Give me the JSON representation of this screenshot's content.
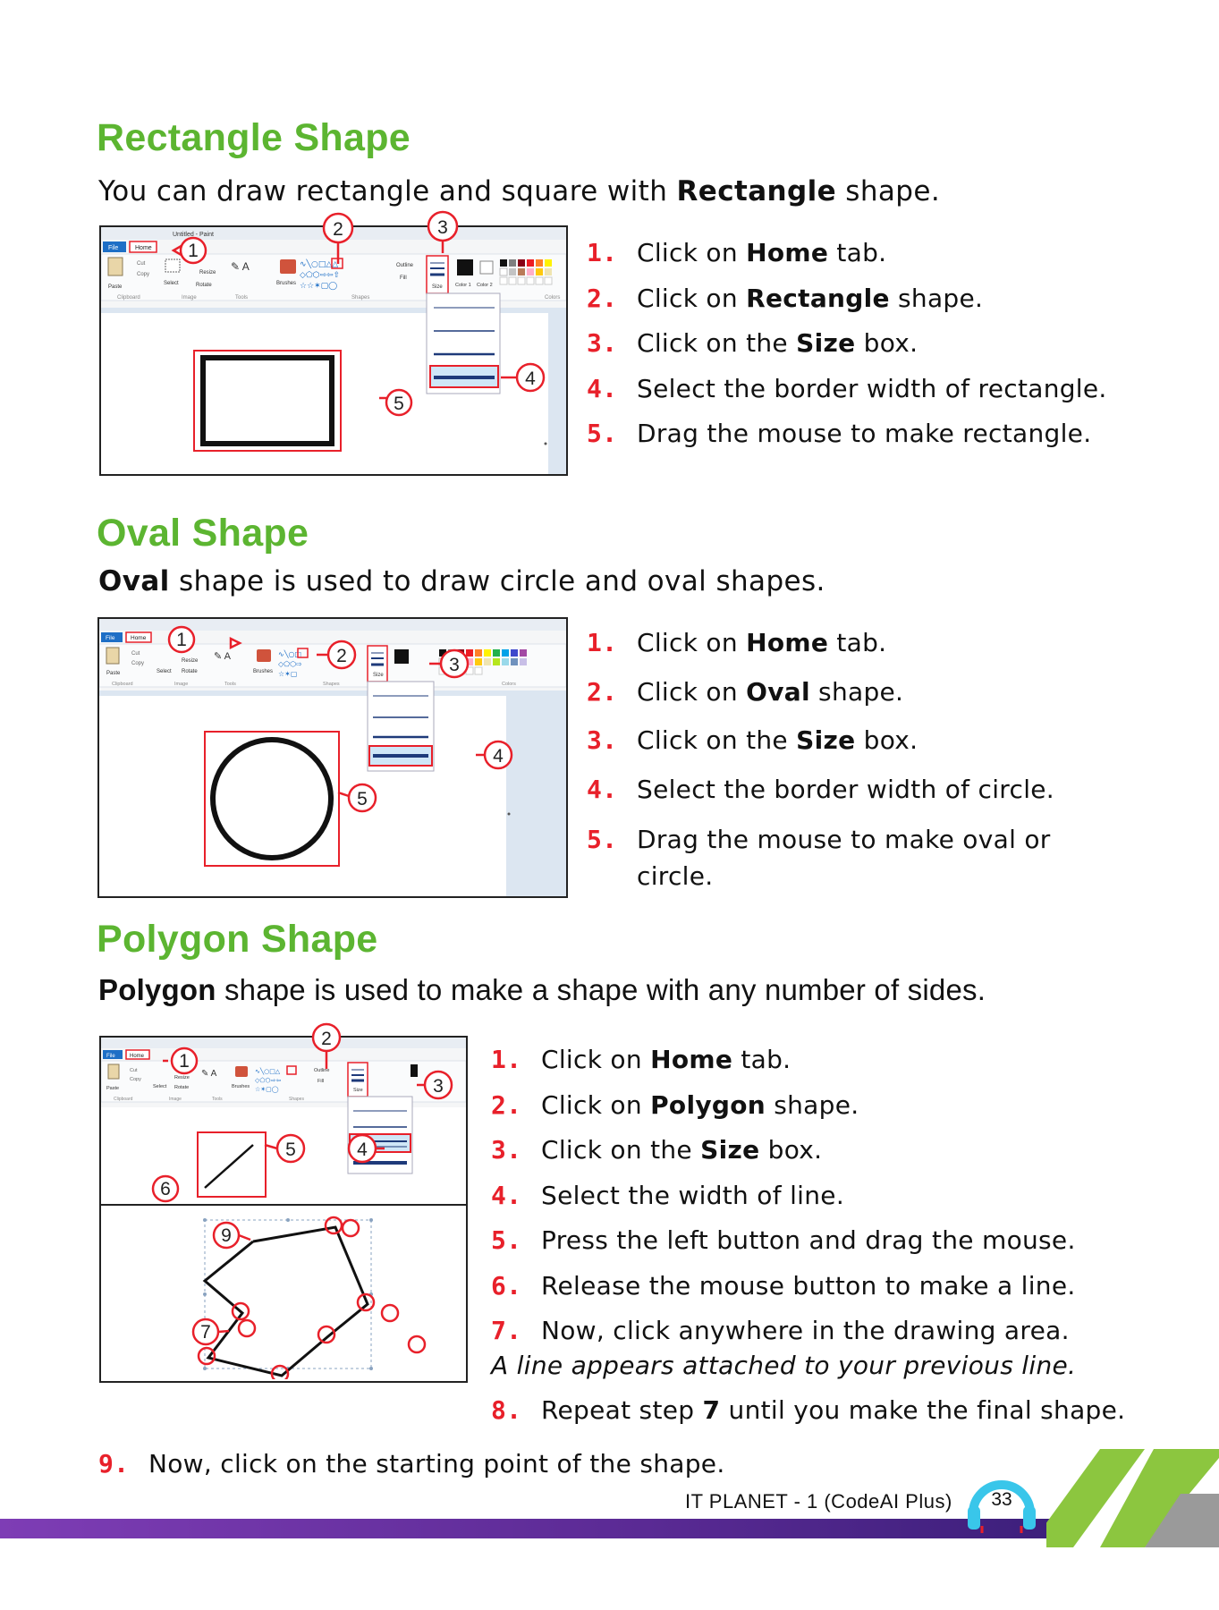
{
  "sections": [
    {
      "title": "Rectangle Shape",
      "intro_before": "You can draw rectangle and square with ",
      "intro_bold": "Rectangle",
      "intro_after": " shape.",
      "steps": [
        {
          "num": "1.",
          "pre": "Click on ",
          "bold": "Home",
          "post": " tab."
        },
        {
          "num": "2.",
          "pre": "Click on ",
          "bold": "Rectangle",
          "post": " shape."
        },
        {
          "num": "3.",
          "pre": "Click on the ",
          "bold": "Size",
          "post": " box."
        },
        {
          "num": "4.",
          "pre": "Select the border width of rectangle.",
          "bold": "",
          "post": ""
        },
        {
          "num": "5.",
          "pre": "Drag the mouse to make rectangle.",
          "bold": "",
          "post": ""
        }
      ]
    },
    {
      "title": "Oval Shape",
      "intro_before": "",
      "intro_bold": "Oval",
      "intro_after": " shape is used to draw circle and oval shapes.",
      "steps": [
        {
          "num": "1.",
          "pre": "Click on ",
          "bold": "Home",
          "post": " tab."
        },
        {
          "num": "2.",
          "pre": "Click on ",
          "bold": "Oval",
          "post": " shape."
        },
        {
          "num": "3.",
          "pre": "Click on the ",
          "bold": "Size",
          "post": " box."
        },
        {
          "num": "4.",
          "pre": "Select the border width of circle.",
          "bold": "",
          "post": ""
        },
        {
          "num": "5.",
          "pre": "Drag the mouse to make oval or",
          "bold": "",
          "post": "",
          "line2": "circle."
        }
      ]
    },
    {
      "title": "Polygon Shape",
      "intro_before": "",
      "intro_bold": "Polygon",
      "intro_after": " shape is used to make a shape with any number of sides.",
      "steps": [
        {
          "num": "1.",
          "pre": "Click on ",
          "bold": "Home",
          "post": " tab."
        },
        {
          "num": "2.",
          "pre": "Click on ",
          "bold": "Polygon",
          "post": " shape."
        },
        {
          "num": "3.",
          "pre": "Click on the ",
          "bold": "Size",
          "post": " box."
        },
        {
          "num": "4.",
          "pre": "Select the width of line.",
          "bold": "",
          "post": ""
        },
        {
          "num": "5.",
          "pre": "Press the left button and drag the mouse.",
          "bold": "",
          "post": ""
        },
        {
          "num": "6.",
          "pre": "Release the mouse button to make a line.",
          "bold": "",
          "post": ""
        },
        {
          "num": "7.",
          "pre": "Now, click anywhere in the drawing area.",
          "bold": "",
          "post": ""
        }
      ],
      "note": "A line appears attached to your previous line.",
      "step8": {
        "num": "8.",
        "pre": "Repeat step ",
        "bold": "7",
        "post": " until you make the final shape."
      },
      "step9": {
        "num": "9.",
        "pre": "Now, click on the starting point of the shape."
      }
    }
  ],
  "paint_ui": {
    "file_tab": "File",
    "home_tab": "Home",
    "title_text": "Untitled - Paint",
    "paste": "Paste",
    "cut": "Cut",
    "copy": "Copy",
    "select": "Select",
    "resize": "Resize",
    "rotate": "Rotate",
    "brushes": "Brushes",
    "outline": "Outline",
    "fill": "Fill",
    "size": "Size",
    "color1": "Color 1",
    "color2": "Color 2",
    "groups": [
      "Clipboard",
      "Image",
      "Tools",
      "Shapes",
      "Colors"
    ]
  },
  "callouts": [
    "1",
    "2",
    "3",
    "4",
    "5",
    "6",
    "7",
    "9"
  ],
  "colors": {
    "heading": "#5cb531",
    "number": "#e8202a",
    "callout": "#e8202a",
    "footer_bar": "#6a2fa0",
    "footer_green": "#8cc63f"
  },
  "footer": {
    "book": "IT PLANET - 1 (CodeAI Plus)",
    "page": "33"
  }
}
